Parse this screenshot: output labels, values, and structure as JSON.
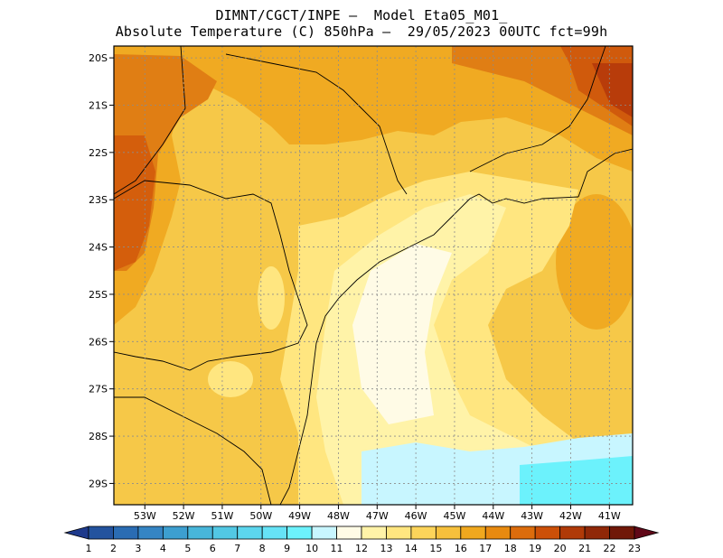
{
  "title_line1": "DIMNT/CGCT/INPE –  Model Eta05_M01_",
  "title_line2": "Absolute Temperature (C) 850hPa –  29/05/2023 00UTC fct=99h",
  "lat_labels": [
    "20S",
    "21S",
    "22S",
    "23S",
    "24S",
    "25S",
    "26S",
    "27S",
    "28S",
    "29S"
  ],
  "lon_labels": [
    "53W",
    "52W",
    "51W",
    "50W",
    "49W",
    "48W",
    "47W",
    "46W",
    "45W",
    "44W",
    "43W",
    "42W",
    "41W"
  ],
  "colorbar": {
    "labels": [
      "1",
      "2",
      "3",
      "4",
      "5",
      "6",
      "7",
      "8",
      "9",
      "10",
      "11",
      "12",
      "13",
      "14",
      "15",
      "16",
      "17",
      "18",
      "19",
      "20",
      "21",
      "22",
      "23"
    ],
    "colors": [
      "#1e3a8c",
      "#23539e",
      "#2a6cb3",
      "#3585c4",
      "#3d9fd0",
      "#48b6da",
      "#52c8e4",
      "#5cd6ee",
      "#66e3f6",
      "#6cf2fc",
      "#c8f6ff",
      "#fffbe6",
      "#fff3a8",
      "#ffe680",
      "#fcd45a",
      "#f6c03c",
      "#f0a81e",
      "#e88a10",
      "#dc6c0c",
      "#cc5008",
      "#b03a08",
      "#902808",
      "#701808",
      "#600818"
    ]
  }
}
